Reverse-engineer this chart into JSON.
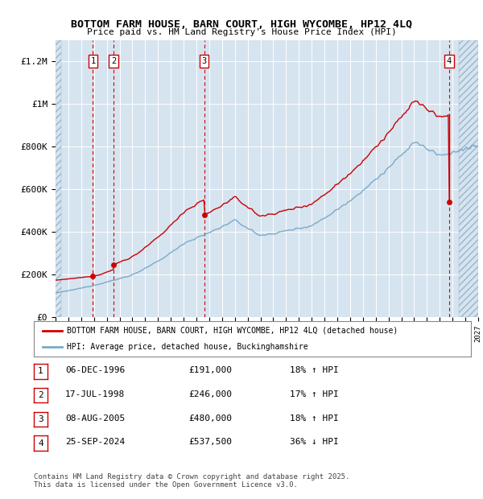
{
  "title": "BOTTOM FARM HOUSE, BARN COURT, HIGH WYCOMBE, HP12 4LQ",
  "subtitle": "Price paid vs. HM Land Registry's House Price Index (HPI)",
  "bg_color": "#d6e4f0",
  "red_line_color": "#cc0000",
  "blue_line_color": "#7aaac8",
  "ylim": [
    0,
    1300000
  ],
  "yticks": [
    0,
    200000,
    400000,
    600000,
    800000,
    1000000,
    1200000
  ],
  "ytick_labels": [
    "£0",
    "£200K",
    "£400K",
    "£600K",
    "£800K",
    "£1M",
    "£1.2M"
  ],
  "xstart_year": 1994,
  "xend_year": 2027,
  "sale_dates": [
    1996.92,
    1998.54,
    2005.6,
    2024.73
  ],
  "sale_prices": [
    191000,
    246000,
    480000,
    537500
  ],
  "sale_labels": [
    "1",
    "2",
    "3",
    "4"
  ],
  "legend_line1": "BOTTOM FARM HOUSE, BARN COURT, HIGH WYCOMBE, HP12 4LQ (detached house)",
  "legend_line2": "HPI: Average price, detached house, Buckinghamshire",
  "table_rows": [
    [
      "1",
      "06-DEC-1996",
      "£191,000",
      "18% ↑ HPI"
    ],
    [
      "2",
      "17-JUL-1998",
      "£246,000",
      "17% ↑ HPI"
    ],
    [
      "3",
      "08-AUG-2005",
      "£480,000",
      "18% ↑ HPI"
    ],
    [
      "4",
      "25-SEP-2024",
      "£537,500",
      "36% ↓ HPI"
    ]
  ],
  "footer": "Contains HM Land Registry data © Crown copyright and database right 2025.\nThis data is licensed under the Open Government Licence v3.0."
}
